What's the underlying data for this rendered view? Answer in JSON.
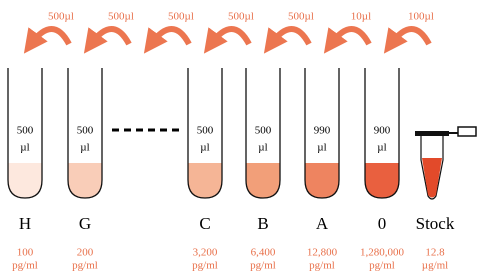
{
  "transfers": [
    "500µl",
    "500µl",
    "500µl",
    "500µl",
    "500µl",
    "10µl",
    "100µl"
  ],
  "tubes": [
    {
      "name": "H",
      "volume": "500",
      "volume_unit": "µl",
      "concentration": "100",
      "unit": "pg/ml",
      "color": "#fde8de"
    },
    {
      "name": "G",
      "volume": "500",
      "volume_unit": "µl",
      "concentration": "200",
      "unit": "pg/ml",
      "color": "#f9cdb8"
    },
    {
      "name": "C",
      "volume": "500",
      "volume_unit": "µl",
      "concentration": "3,200",
      "unit": "pg/ml",
      "color": "#f5b596"
    },
    {
      "name": "B",
      "volume": "500",
      "volume_unit": "µl",
      "concentration": "6,400",
      "unit": "pg/ml",
      "color": "#f29f79"
    },
    {
      "name": "A",
      "volume": "990",
      "volume_unit": "µl",
      "concentration": "12,800",
      "unit": "pg/ml",
      "color": "#ee8460"
    },
    {
      "name": "0",
      "volume": "900",
      "volume_unit": "µl",
      "concentration": "1,280,000",
      "unit": "pg/ml",
      "color": "#e9603f"
    },
    {
      "name": "Stock",
      "concentration": "12.8",
      "unit": "µg/ml",
      "color": "#e24a2a"
    }
  ]
}
